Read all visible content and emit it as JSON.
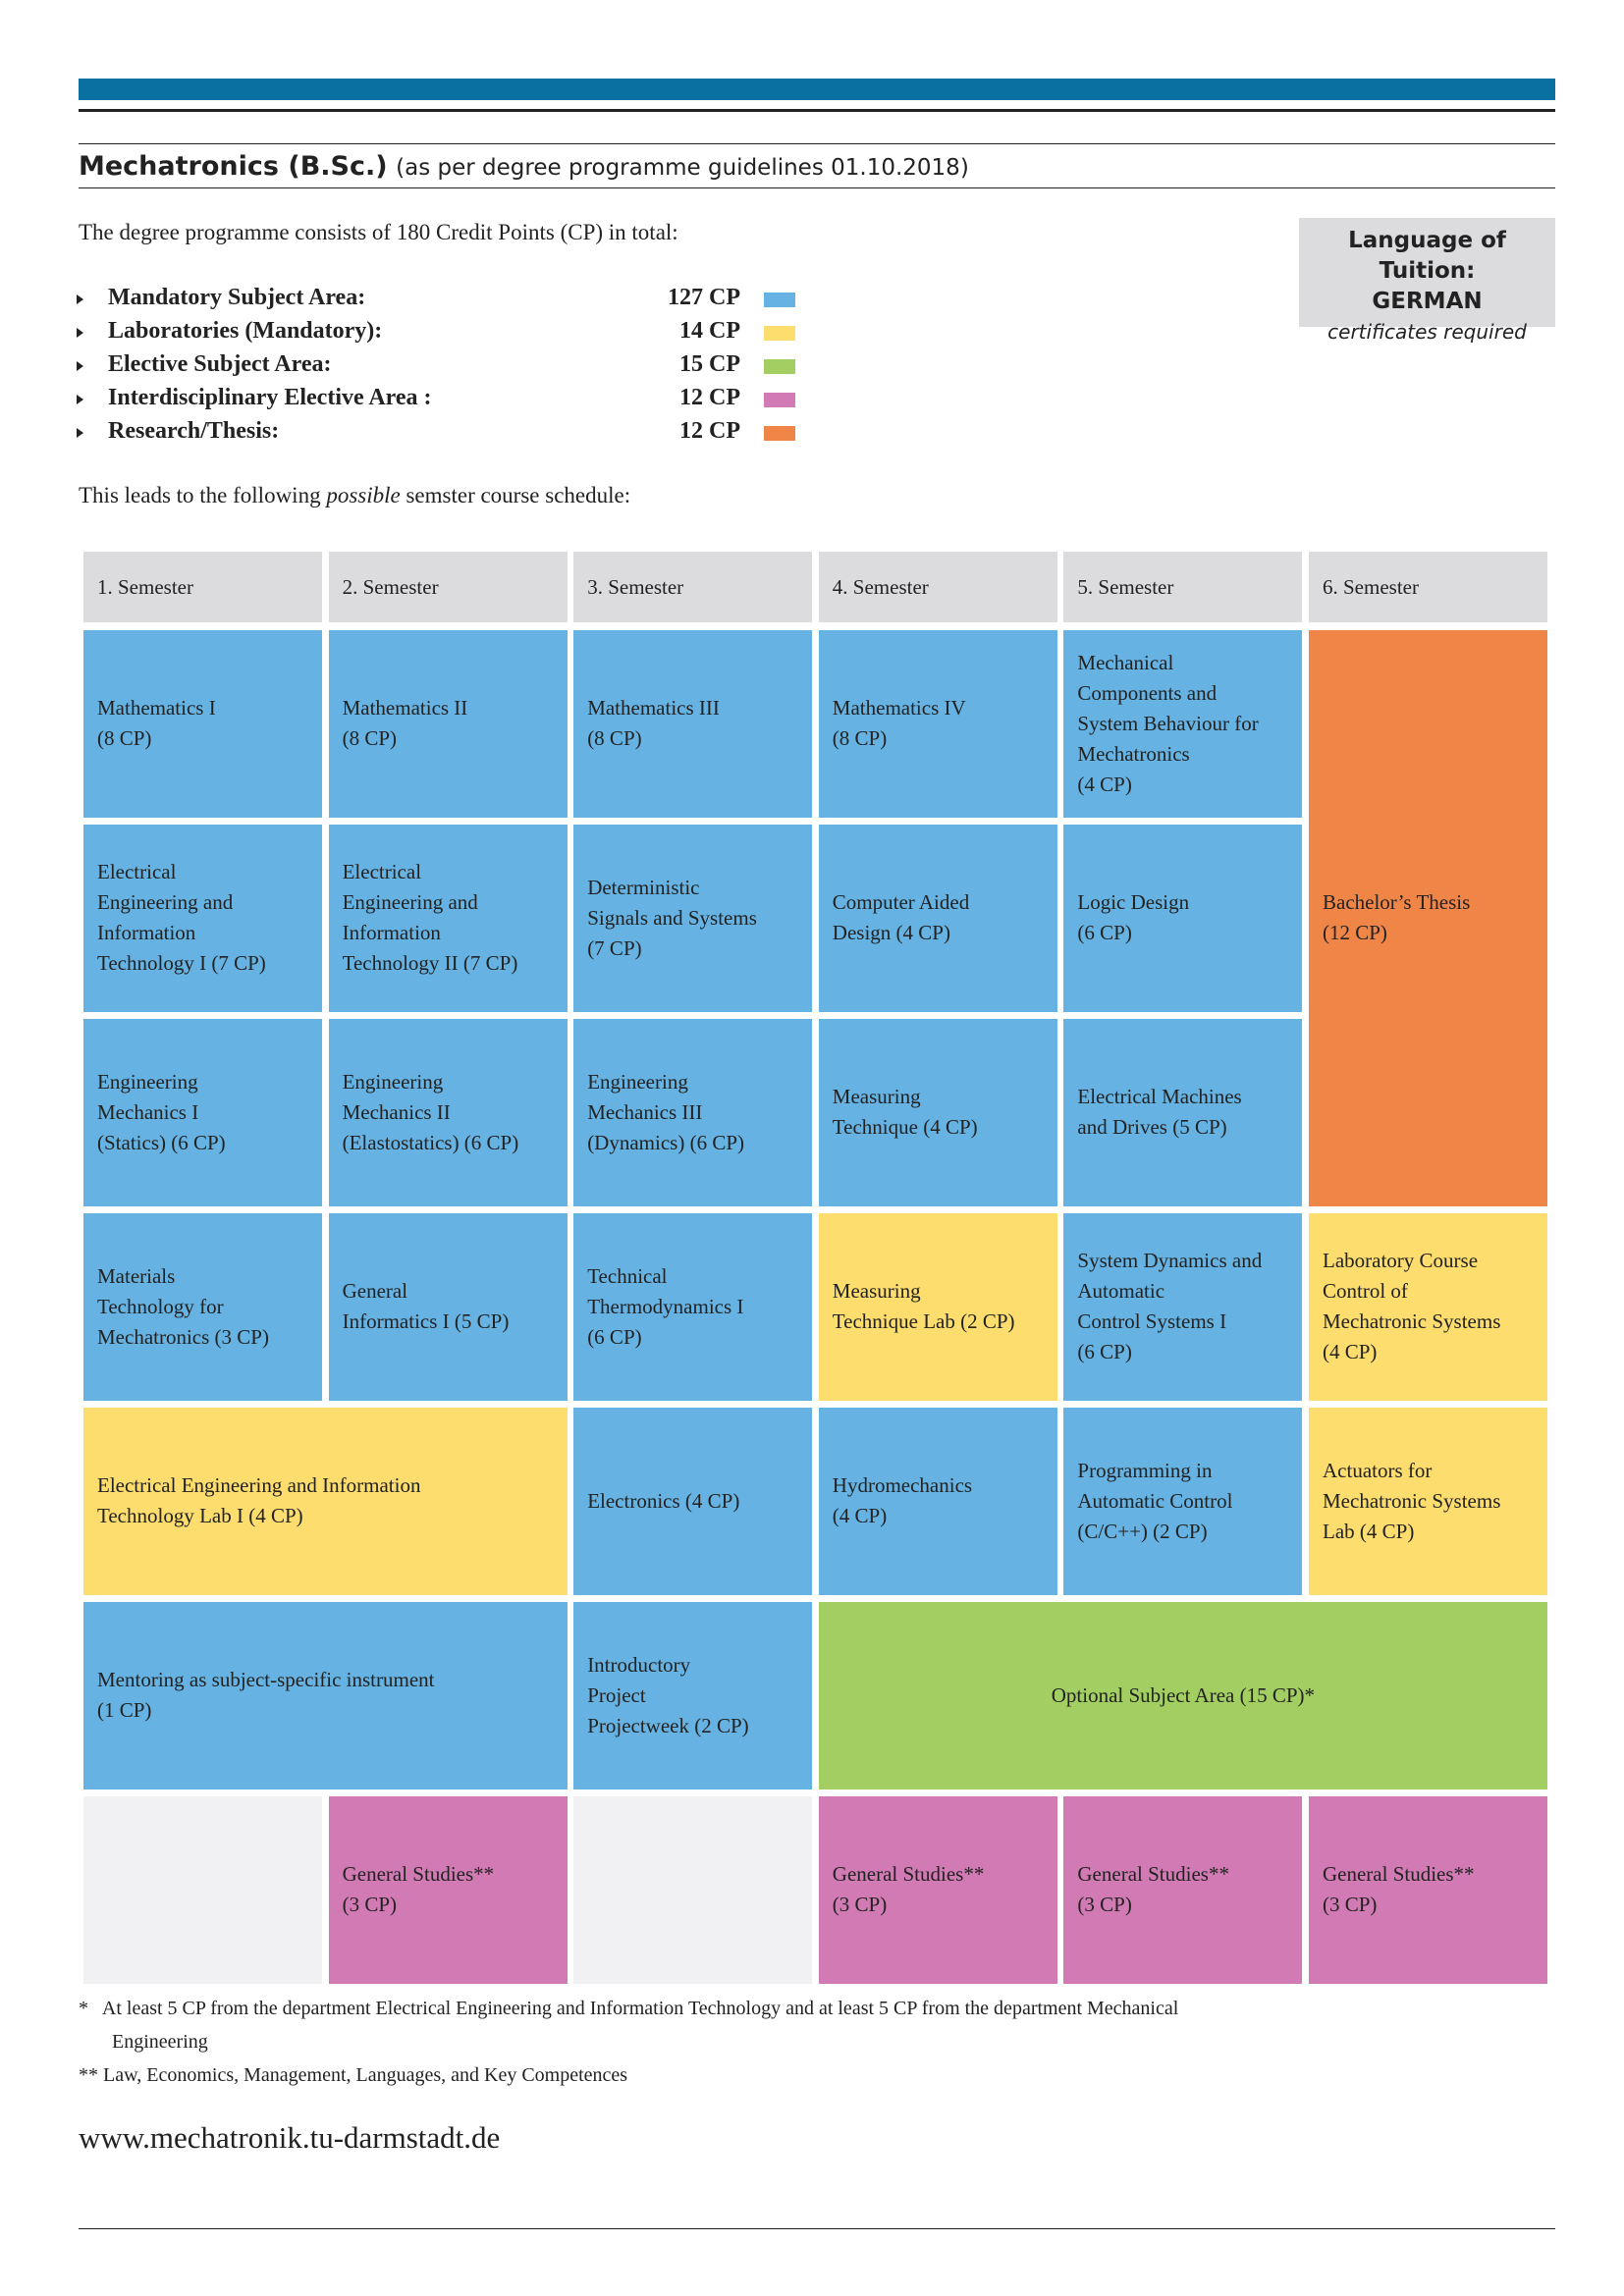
{
  "header": {
    "title": "Mechatronics (B.Sc.)",
    "subtitle": "(as per degree programme guidelines 01.10.2018)"
  },
  "intro": "The degree programme consists of 180 Credit Points (CP) in total:",
  "language_box": {
    "title": "Language of Tuition:",
    "language": "GERMAN",
    "note": "certificates required"
  },
  "areas": [
    {
      "label": "Mandatory Subject Area:",
      "cp": "127 CP",
      "color": "#66b3e3"
    },
    {
      "label": "Laboratories (Mandatory):",
      "cp": "14 CP",
      "color": "#fddd6e"
    },
    {
      "label": "Elective Subject Area:",
      "cp": "15 CP",
      "color": "#a3cf62"
    },
    {
      "label": "Interdisciplinary Elective Area :",
      "cp": "12 CP",
      "color": "#d17ab3"
    },
    {
      "label": "Research/Thesis:",
      "cp": "12 CP",
      "color": "#f08548"
    }
  ],
  "schedule_intro": [
    "This leads to the following ",
    "possible",
    " semster course schedule:"
  ],
  "schedule": {
    "headers": [
      "1. Semester",
      "2. Semester",
      "3. Semester",
      "4. Semester",
      "5. Semester",
      "6. Semester"
    ],
    "cells": [
      [
        "Mathematics I",
        "(8 CP)"
      ],
      [
        "Mathematics II",
        "(8 CP)"
      ],
      [
        "Mathematics III",
        "(8 CP)"
      ],
      [
        "Mathematics IV",
        "(8 CP)"
      ],
      [
        "Mechanical",
        "Components and",
        "System Behaviour for",
        "Mechatronics",
        "(4 CP)"
      ],
      [
        "Bachelor’s Thesis",
        "(12 CP)"
      ],
      [
        "Electrical",
        "Engineering and",
        "Information",
        "Technology I (7 CP)"
      ],
      [
        "Electrical",
        "Engineering and",
        "Information",
        "Technology II (7 CP)"
      ],
      [
        "Deterministic",
        "Signals and Systems",
        "(7 CP)"
      ],
      [
        "Computer Aided",
        "Design (4 CP)"
      ],
      [
        "Logic Design",
        "(6 CP)"
      ],
      [
        "Engineering",
        "Mechanics I",
        "(Statics) (6 CP)"
      ],
      [
        "Engineering",
        "Mechanics II",
        "(Elastostatics) (6 CP)"
      ],
      [
        "Engineering",
        "Mechanics III",
        "(Dynamics) (6 CP)"
      ],
      [
        "Measuring",
        "Technique (4 CP)"
      ],
      [
        "Electrical Machines",
        "and Drives (5 CP)"
      ],
      [
        "Materials",
        "Technology for",
        "Mechatronics (3 CP)"
      ],
      [
        "General",
        "Informatics I (5 CP)"
      ],
      [
        "Technical",
        "Thermodynamics I",
        "(6 CP)"
      ],
      [
        "Measuring",
        "Technique Lab (2 CP)"
      ],
      [
        "System Dynamics and",
        "Automatic",
        "Control Systems I",
        "(6 CP)"
      ],
      [
        "Laboratory Course",
        "Control of",
        "Mechatronic Systems",
        "(4 CP)"
      ],
      [
        "Electrical Engineering and Information",
        "Technology Lab I (4 CP)"
      ],
      [
        "Electronics (4 CP)"
      ],
      [
        "Hydromechanics",
        "(4 CP)"
      ],
      [
        "Programming in",
        "Automatic Control",
        "(C/C++) (2 CP)"
      ],
      [
        "Actuators for",
        "Mechatronic Systems",
        "Lab (4 CP)"
      ],
      [
        "Mentoring as subject-specific instrument",
        "(1 CP)"
      ],
      [
        "Introductory",
        "Project",
        "Projectweek (2 CP)"
      ],
      [
        "Optional Subject Area (15 CP)*"
      ],
      [
        "General Studies**",
        "(3 CP)"
      ],
      [
        "General Studies**",
        "(3 CP)"
      ],
      [
        "General Studies**",
        "(3 CP)"
      ],
      [
        "General Studies**",
        "(3 CP)"
      ]
    ]
  },
  "footnotes": [
    [
      "*   At least 5 CP from the department Electrical Engineering and Information Technology and at least 5 CP from the department Mechanical",
      "Engineering"
    ],
    [
      "** Law, Economics, Management, Languages, and Key Competences"
    ]
  ],
  "footer": {
    "url": "www.mechatronik.tu-darmstadt.de"
  }
}
